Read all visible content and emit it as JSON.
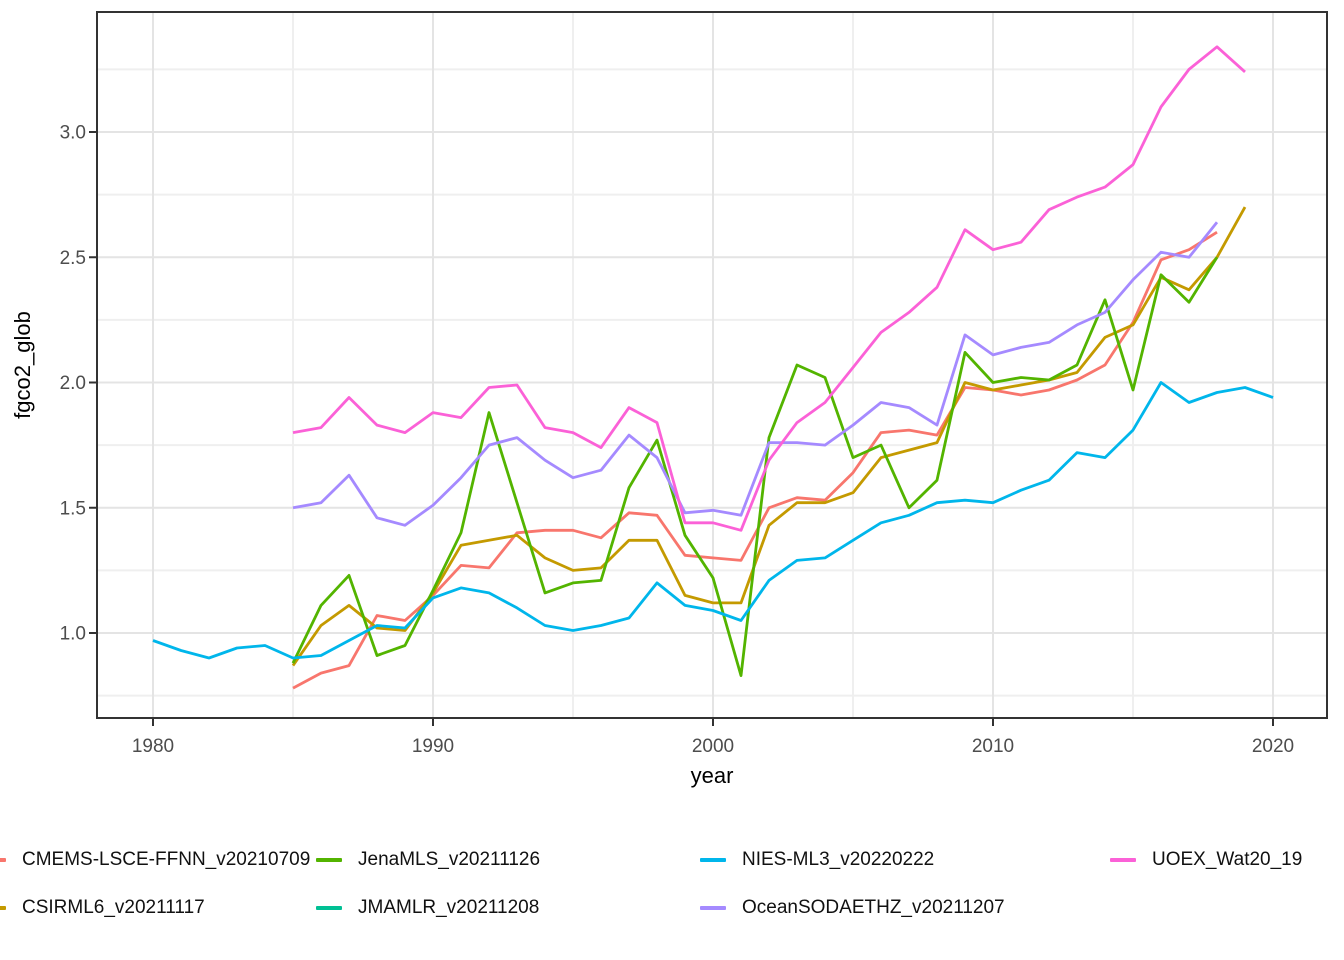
{
  "chart_data": {
    "type": "line",
    "title": "",
    "xlabel": "year",
    "ylabel": "fgco2_glob",
    "x_ticks": [
      1980,
      1990,
      2000,
      2010,
      2020
    ],
    "x_minor_ticks": [
      1985,
      1995,
      2005,
      2015
    ],
    "y_ticks": [
      "1.0",
      "1.5",
      "2.0",
      "2.5",
      "3.0"
    ],
    "y_tick_values": [
      1.0,
      1.5,
      2.0,
      2.5,
      3.0
    ],
    "y_minor_tick_values": [
      0.75,
      1.25,
      1.75,
      2.25,
      2.75,
      3.25
    ],
    "xlim": [
      1978,
      2022
    ],
    "ylim": [
      0.66,
      3.48
    ],
    "grid": "major and minor, light gray on white, black panel border (ggplot theme_bw)",
    "legend_position": "bottom, 4 columns x 2 rows, no title",
    "colors": {
      "grid_major": "#e4e4e4",
      "grid_minor": "#efefef",
      "panel_border": "#333333",
      "tick_text": "#4d4d4d",
      "axis_title": "#000000"
    },
    "series": [
      {
        "name": "CMEMS-LSCE-FFNN_v20210709",
        "color": "#F8766D",
        "start_year": 1985,
        "step": 1,
        "values": [
          0.78,
          0.84,
          0.87,
          1.07,
          1.05,
          1.15,
          1.27,
          1.26,
          1.4,
          1.41,
          1.41,
          1.38,
          1.48,
          1.47,
          1.31,
          1.3,
          1.29,
          1.5,
          1.54,
          1.53,
          1.64,
          1.8,
          1.81,
          1.79,
          1.98,
          1.97,
          1.95,
          1.97,
          2.01,
          2.07,
          2.24,
          2.49,
          2.53,
          2.6
        ]
      },
      {
        "name": "CSIRML6_v20211117",
        "color": "#C49A00",
        "start_year": 1985,
        "step": 1,
        "values": [
          0.87,
          1.03,
          1.11,
          1.02,
          1.01,
          1.16,
          1.35,
          1.37,
          1.39,
          1.3,
          1.25,
          1.26,
          1.37,
          1.37,
          1.15,
          1.12,
          1.12,
          1.43,
          1.52,
          1.52,
          1.56,
          1.7,
          1.73,
          1.76,
          2.0,
          1.97,
          1.99,
          2.01,
          2.04,
          2.18,
          2.23,
          2.42,
          2.37,
          2.5,
          2.7
        ]
      },
      {
        "name": "JenaMLS_v20211126",
        "color": "#53B400",
        "start_year": 1985,
        "step": 1,
        "values": [
          0.88,
          1.11,
          1.23,
          0.91,
          0.95,
          1.17,
          1.4,
          1.88,
          1.52,
          1.16,
          1.2,
          1.21,
          1.58,
          1.77,
          1.39,
          1.22,
          0.83,
          1.78,
          2.07,
          2.02,
          1.7,
          1.75,
          1.5,
          1.61,
          2.12,
          2.0,
          2.02,
          2.01,
          2.07,
          2.33,
          1.97,
          2.43,
          2.32,
          2.5
        ]
      },
      {
        "name": "JMAMLR_v20211208",
        "color": "#00C094",
        "start_year": null,
        "step": 1,
        "values": [],
        "note": "present in legend, no visible line in plot area"
      },
      {
        "name": "NIES-ML3_v20220222",
        "color": "#00B6EB",
        "start_year": 1980,
        "step": 1,
        "values": [
          0.97,
          0.93,
          0.9,
          0.94,
          0.95,
          0.9,
          0.91,
          0.97,
          1.03,
          1.02,
          1.14,
          1.18,
          1.16,
          1.1,
          1.03,
          1.01,
          1.03,
          1.06,
          1.2,
          1.11,
          1.09,
          1.05,
          1.21,
          1.29,
          1.3,
          1.37,
          1.44,
          1.47,
          1.52,
          1.53,
          1.52,
          1.57,
          1.61,
          1.72,
          1.7,
          1.81,
          2.0,
          1.92,
          1.96,
          1.98,
          1.94
        ]
      },
      {
        "name": "OceanSODAETHZ_v20211207",
        "color": "#A58AFF",
        "start_year": 1985,
        "step": 1,
        "values": [
          1.5,
          1.52,
          1.63,
          1.46,
          1.43,
          1.51,
          1.62,
          1.75,
          1.78,
          1.69,
          1.62,
          1.65,
          1.79,
          1.7,
          1.48,
          1.49,
          1.47,
          1.76,
          1.76,
          1.75,
          1.83,
          1.92,
          1.9,
          1.83,
          2.19,
          2.11,
          2.14,
          2.16,
          2.23,
          2.28,
          2.41,
          2.52,
          2.5,
          2.64
        ]
      },
      {
        "name": "UOEX_Wat20_19",
        "color": "#FB61D7",
        "start_year": 1985,
        "step": 1,
        "values": [
          1.8,
          1.82,
          1.94,
          1.83,
          1.8,
          1.88,
          1.86,
          1.98,
          1.99,
          1.82,
          1.8,
          1.74,
          1.9,
          1.84,
          1.44,
          1.44,
          1.41,
          1.69,
          1.84,
          1.92,
          2.06,
          2.2,
          2.28,
          2.38,
          2.61,
          2.53,
          2.56,
          2.69,
          2.74,
          2.78,
          2.87,
          3.1,
          3.25,
          3.34,
          3.24
        ]
      }
    ]
  },
  "legend": {
    "entries": [
      {
        "label": "CMEMS-LSCE-FFNN_v20210709",
        "color": "#F8766D",
        "clipped_key": true
      },
      {
        "label": "CSIRML6_v20211117",
        "color": "#C49A00",
        "clipped_key": true
      },
      {
        "label": "JenaMLS_v20211126",
        "color": "#53B400",
        "clipped_key": false
      },
      {
        "label": "JMAMLR_v20211208",
        "color": "#00C094",
        "clipped_key": false
      },
      {
        "label": "NIES-ML3_v20220222",
        "color": "#00B6EB",
        "clipped_key": false
      },
      {
        "label": "OceanSODAETHZ_v20211207",
        "color": "#A58AFF",
        "clipped_key": false
      },
      {
        "label": "UOEX_Wat20_19",
        "color": "#FB61D7",
        "clipped_key": false,
        "label_clipped": true
      }
    ]
  },
  "axes": {
    "x_title": "year",
    "y_title": "fgco2_glob"
  }
}
